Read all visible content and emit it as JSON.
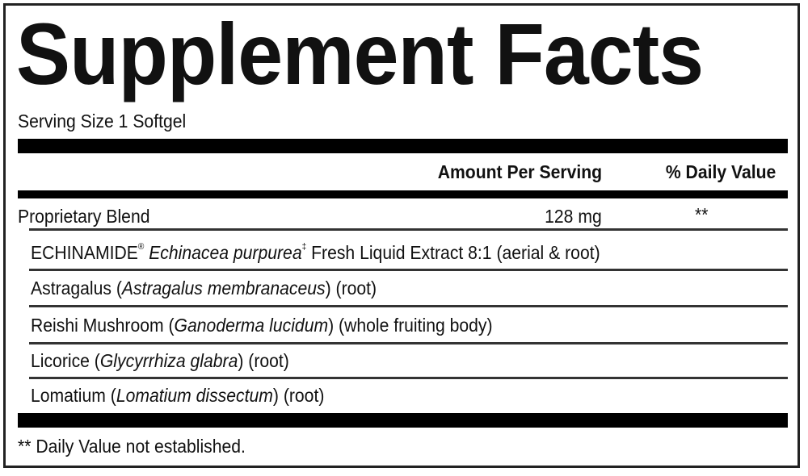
{
  "title": "Supplement Facts",
  "serving_size": "Serving Size 1 Softgel",
  "header": {
    "amount": "Amount Per Serving",
    "dv": "% Daily Value"
  },
  "blend": {
    "name": "Proprietary Blend",
    "amount": "128 mg",
    "dv": "**"
  },
  "ingredients": [
    {
      "pre": "ECHINAMIDE",
      "mark": "®",
      "pre2": " ",
      "latin": "Echinacea purpurea",
      "mark2": "‡",
      "post": " Fresh Liquid Extract 8:1 (aerial & root)"
    },
    {
      "pre": "Astragalus (",
      "latin": "Astragalus membranaceus",
      "post": ") (root)"
    },
    {
      "pre": "Reishi Mushroom (",
      "latin": "Ganoderma lucidum",
      "post": ") (whole fruiting body)"
    },
    {
      "pre": "Licorice (",
      "latin": "Glycyrrhiza glabra",
      "post": ") (root)"
    },
    {
      "pre": "Lomatium (",
      "latin": "Lomatium dissectum",
      "post": ") (root)"
    }
  ],
  "footnote": "** Daily Value not established."
}
